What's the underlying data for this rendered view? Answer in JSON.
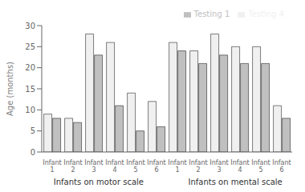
{
  "chart_data": {
    "type": "bar",
    "categories": [
      "Infant\n1",
      "Infant\n2",
      "Infant\n3",
      "Infant\n4",
      "Infant\n5",
      "Infant\n6",
      "Infant\n1",
      "Infant\n2",
      "Infant\n3",
      "Infant\n4",
      "Infant\n5",
      "Infant\n6"
    ],
    "series": [
      {
        "name": "Testing 4",
        "color": "#f0f0f0",
        "values": [
          9,
          8,
          28,
          26,
          14,
          12,
          26,
          24,
          28,
          25,
          25,
          11
        ]
      },
      {
        "name": "Testing 1",
        "color": "#c0c0c0",
        "values": [
          8,
          7,
          23,
          11,
          5,
          6,
          24,
          21,
          23,
          21,
          21,
          8
        ]
      }
    ],
    "ylabel": "Age (months)",
    "annotations": [
      "Infants on motor scale",
      "Infants on mental scale"
    ],
    "ylim": [
      0,
      30
    ],
    "yticks": [
      0,
      5,
      10,
      15,
      20,
      25,
      30
    ],
    "legend": "upper right"
  }
}
